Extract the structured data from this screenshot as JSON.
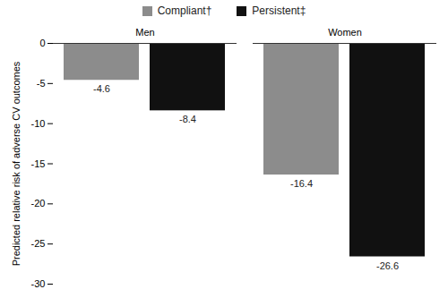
{
  "chart_data": {
    "type": "bar",
    "categories": [
      "Men",
      "Women"
    ],
    "series": [
      {
        "name": "Compliant†",
        "color": "#8c8c8c",
        "values": [
          -4.6,
          -16.4
        ]
      },
      {
        "name": "Persistent‡",
        "color": "#111111",
        "values": [
          -8.4,
          -26.6
        ]
      }
    ],
    "ylabel": "Predicted relative risk of adverse CV outcomes",
    "ylim": [
      -30,
      0
    ],
    "yticks": [
      0,
      -5,
      -10,
      -15,
      -20,
      -25,
      -30
    ],
    "data_labels": true,
    "legend": "top",
    "grid": false
  }
}
